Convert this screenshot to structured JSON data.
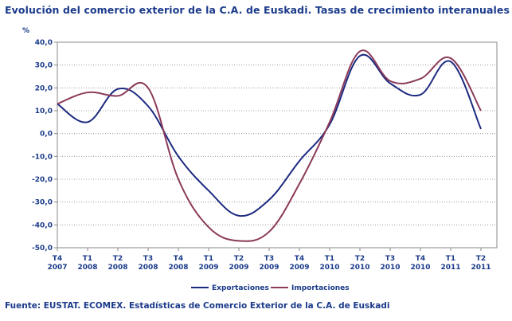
{
  "chart_data": {
    "type": "line",
    "title": "Evolución del comercio exterior de la C.A. de Euskadi. Tasas de crecimiento interanuales",
    "ylabel": "%",
    "xlabel": "",
    "ylim": [
      -50,
      40
    ],
    "yticks": [
      "40,0",
      "30,0",
      "20,0",
      "10,0",
      "0,0",
      "-10,0",
      "-20,0",
      "-30,0",
      "-40,0",
      "-50,0"
    ],
    "ytick_values": [
      40,
      30,
      20,
      10,
      0,
      -10,
      -20,
      -30,
      -40,
      -50
    ],
    "grid": true,
    "legend_position": "bottom",
    "categories": [
      {
        "q": "T4",
        "y": "2007"
      },
      {
        "q": "T1",
        "y": "2008"
      },
      {
        "q": "T2",
        "y": "2008"
      },
      {
        "q": "T3",
        "y": "2008"
      },
      {
        "q": "T4",
        "y": "2008"
      },
      {
        "q": "T1",
        "y": "2009"
      },
      {
        "q": "T2",
        "y": "2009"
      },
      {
        "q": "T3",
        "y": "2009"
      },
      {
        "q": "T4",
        "y": "2009"
      },
      {
        "q": "T1",
        "y": "2010"
      },
      {
        "q": "T2",
        "y": "2010"
      },
      {
        "q": "T3",
        "y": "2010"
      },
      {
        "q": "T4",
        "y": "2010"
      },
      {
        "q": "T1",
        "y": "2011"
      },
      {
        "q": "T2",
        "y": "2011"
      }
    ],
    "series": [
      {
        "name": "Exportaciones",
        "color": "#1c2a80",
        "values": [
          13,
          5,
          19.5,
          12,
          -10,
          -25,
          -36,
          -29,
          -12,
          4,
          34,
          22,
          17,
          31.5,
          2
        ]
      },
      {
        "name": "Importaciones",
        "color": "#8b3a5a",
        "values": [
          13,
          18,
          16.5,
          20,
          -20,
          -41,
          -47,
          -43,
          -22,
          5,
          36,
          23,
          24,
          33,
          10
        ]
      }
    ]
  },
  "source": "Fuente: EUSTAT. ECOMEX. Estadísticas de Comercio Exterior de la C.A. de Euskadi"
}
